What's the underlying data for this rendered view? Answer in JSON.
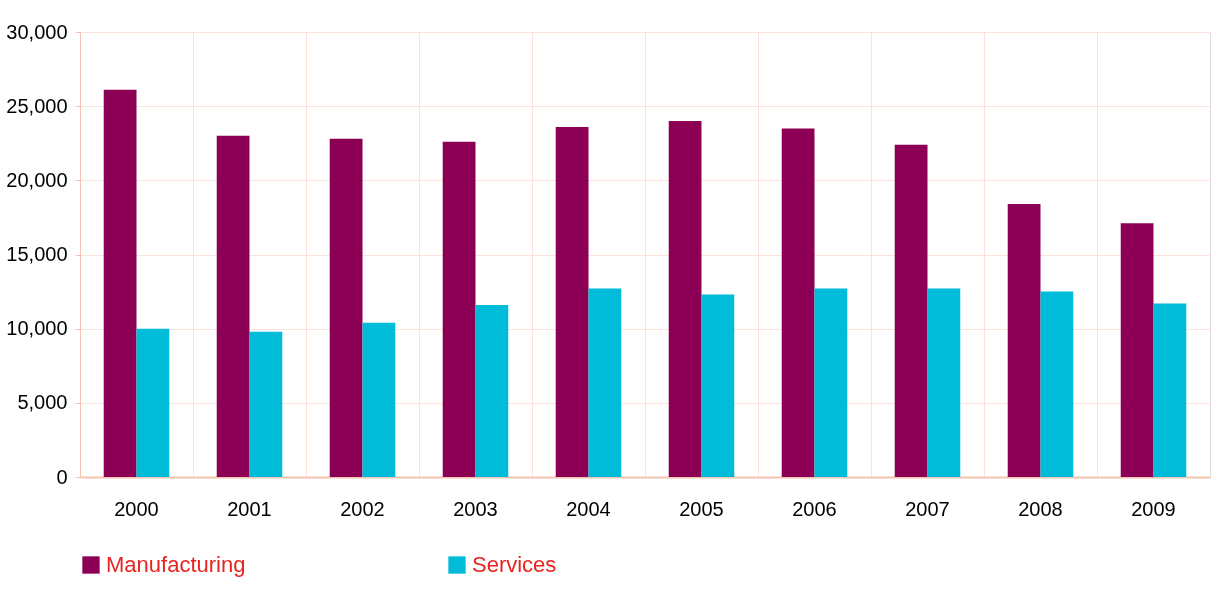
{
  "chart_data": {
    "type": "bar",
    "categories": [
      "2000",
      "2001",
      "2002",
      "2003",
      "2004",
      "2005",
      "2006",
      "2007",
      "2008",
      "2009"
    ],
    "series": [
      {
        "name": "Manufacturing",
        "color": "#8b0055",
        "values": [
          26100,
          23000,
          22800,
          22600,
          23600,
          24000,
          23500,
          22400,
          18400,
          17100
        ]
      },
      {
        "name": "Services",
        "color": "#00bcd8",
        "values": [
          10000,
          9800,
          10400,
          11600,
          12700,
          12300,
          12700,
          12700,
          12500,
          11700
        ]
      }
    ],
    "ylim": [
      0,
      30000
    ],
    "yticks": [
      0,
      {
        "value": 5000,
        "label": "5,000"
      },
      {
        "value": 10000,
        "label": "10,000"
      },
      {
        "value": 15000,
        "label": "15,000"
      },
      {
        "value": 20000,
        "label": "20,000"
      },
      {
        "value": 25000,
        "label": "25,000"
      },
      {
        "value": 30000,
        "label": "30,000"
      }
    ],
    "grid": true,
    "legend": "bottom"
  }
}
